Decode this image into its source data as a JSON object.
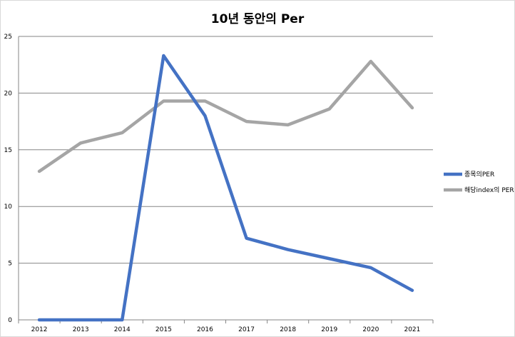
{
  "chart_data": {
    "type": "line",
    "title": "10년 동안의 Per",
    "xlabel": "",
    "ylabel": "",
    "categories": [
      "2012",
      "2013",
      "2014",
      "2015",
      "2016",
      "2017",
      "2018",
      "2019",
      "2020",
      "2021"
    ],
    "ylim": [
      0,
      25
    ],
    "yticks": [
      0,
      5,
      10,
      15,
      20,
      25
    ],
    "grid": true,
    "legend": "right",
    "series": [
      {
        "name": "종목의PER",
        "color": "#4472C4",
        "values": [
          0,
          0,
          0,
          23.3,
          18.0,
          7.2,
          6.2,
          5.4,
          4.6,
          2.6
        ]
      },
      {
        "name": "해당index의 PER",
        "color": "#A5A5A5",
        "values": [
          13.1,
          15.6,
          16.5,
          19.3,
          19.3,
          17.5,
          17.2,
          18.6,
          22.8,
          18.7
        ]
      }
    ]
  }
}
